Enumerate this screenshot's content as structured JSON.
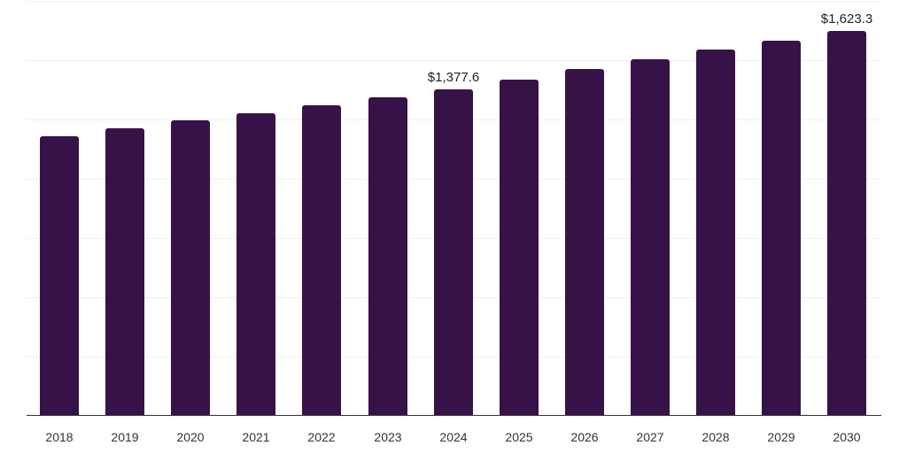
{
  "chart_data": {
    "type": "bar",
    "title": "",
    "xlabel": "",
    "ylabel": "",
    "categories": [
      "2018",
      "2019",
      "2020",
      "2021",
      "2022",
      "2023",
      "2024",
      "2025",
      "2026",
      "2027",
      "2028",
      "2029",
      "2030"
    ],
    "values": [
      1180,
      1213,
      1247,
      1277,
      1310,
      1344,
      1377.6,
      1419,
      1463,
      1504,
      1545,
      1583,
      1623.3
    ],
    "data_labels": {
      "2024": "$1,377.6",
      "2030": "$1,623.3"
    },
    "ylim": [
      0,
      1750
    ],
    "gridlines": [
      0,
      250,
      500,
      750,
      1000,
      1250,
      1500,
      1750
    ],
    "grid": true,
    "y_tick_labels_visible": false,
    "legend": null,
    "bar_color": "#371249"
  }
}
